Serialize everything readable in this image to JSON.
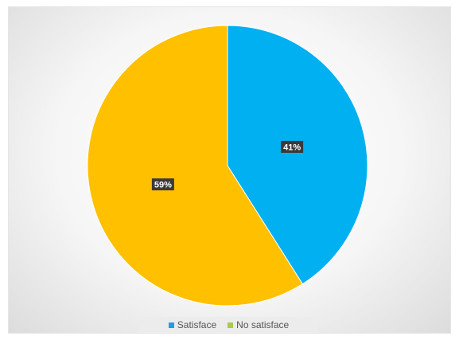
{
  "chart_data": {
    "type": "pie",
    "title": "",
    "slices": [
      {
        "label": "Satisface",
        "value": 41,
        "display": "41%",
        "color": "#00B0F0"
      },
      {
        "label": "No satisface",
        "value": 59,
        "display": "59%",
        "color": "#FFC000"
      }
    ],
    "legend_position": "bottom",
    "legend": [
      {
        "label": "Satisface",
        "color": "#1E9FE0"
      },
      {
        "label": "No satisface",
        "color": "#A9C94F"
      }
    ],
    "data_label_background": "#3a3a3a"
  }
}
